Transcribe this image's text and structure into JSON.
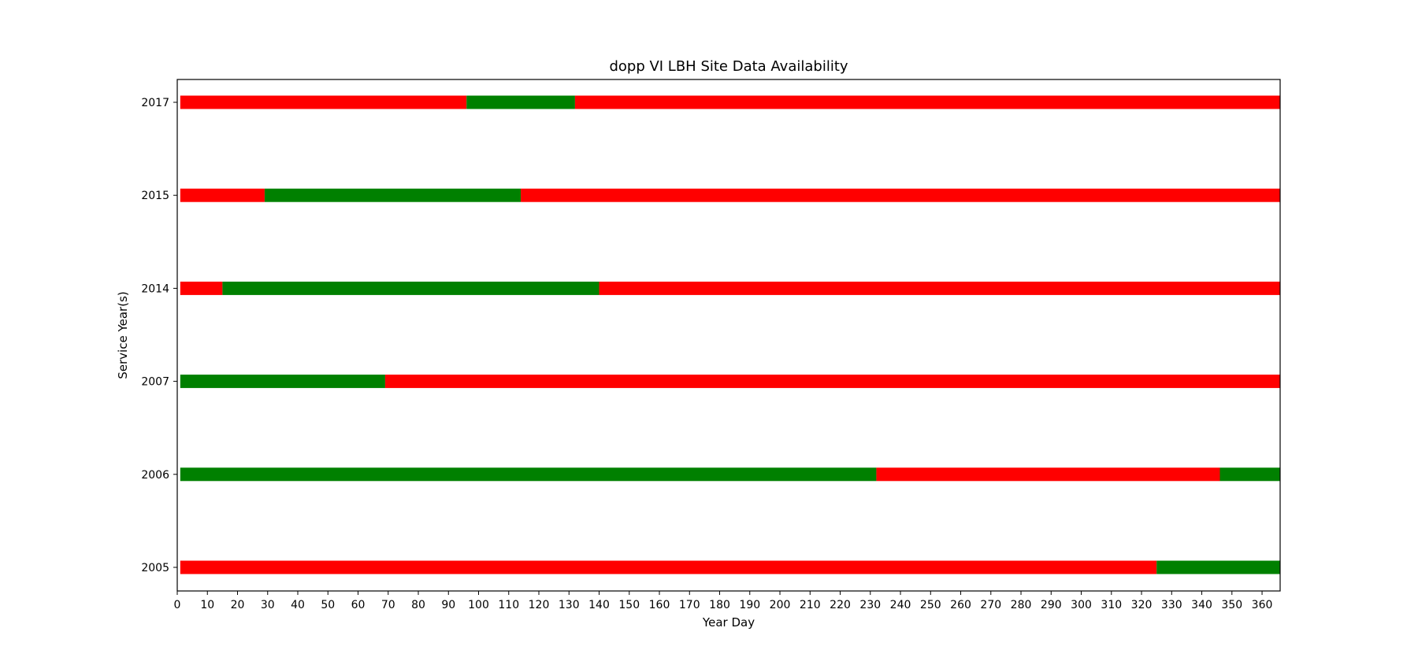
{
  "chart_data": {
    "type": "bar",
    "orientation": "horizontal-broken",
    "title": "dopp VI LBH Site Data Availability",
    "xlabel": "Year Day",
    "ylabel": "Service Year(s)",
    "xlim": [
      0,
      366
    ],
    "xticks": [
      0,
      10,
      20,
      30,
      40,
      50,
      60,
      70,
      80,
      90,
      100,
      110,
      120,
      130,
      140,
      150,
      160,
      170,
      180,
      190,
      200,
      210,
      220,
      230,
      240,
      250,
      260,
      270,
      280,
      290,
      300,
      310,
      320,
      330,
      340,
      350,
      360
    ],
    "categories": [
      "2005",
      "2006",
      "2007",
      "2014",
      "2015",
      "2017"
    ],
    "colors": {
      "available": "#008000",
      "unavailable": "#ff0000"
    },
    "series": [
      {
        "year": "2005",
        "segments": [
          {
            "start": 1,
            "end": 325,
            "status": "unavailable"
          },
          {
            "start": 325,
            "end": 366,
            "status": "available"
          }
        ]
      },
      {
        "year": "2006",
        "segments": [
          {
            "start": 1,
            "end": 232,
            "status": "available"
          },
          {
            "start": 232,
            "end": 346,
            "status": "unavailable"
          },
          {
            "start": 346,
            "end": 366,
            "status": "available"
          }
        ]
      },
      {
        "year": "2007",
        "segments": [
          {
            "start": 1,
            "end": 69,
            "status": "available"
          },
          {
            "start": 69,
            "end": 366,
            "status": "unavailable"
          }
        ]
      },
      {
        "year": "2014",
        "segments": [
          {
            "start": 1,
            "end": 15,
            "status": "unavailable"
          },
          {
            "start": 15,
            "end": 140,
            "status": "available"
          },
          {
            "start": 140,
            "end": 366,
            "status": "unavailable"
          }
        ]
      },
      {
        "year": "2015",
        "segments": [
          {
            "start": 1,
            "end": 29,
            "status": "unavailable"
          },
          {
            "start": 29,
            "end": 114,
            "status": "available"
          },
          {
            "start": 114,
            "end": 366,
            "status": "unavailable"
          }
        ]
      },
      {
        "year": "2017",
        "segments": [
          {
            "start": 1,
            "end": 96,
            "status": "unavailable"
          },
          {
            "start": 96,
            "end": 132,
            "status": "available"
          },
          {
            "start": 132,
            "end": 366,
            "status": "unavailable"
          }
        ]
      }
    ]
  }
}
